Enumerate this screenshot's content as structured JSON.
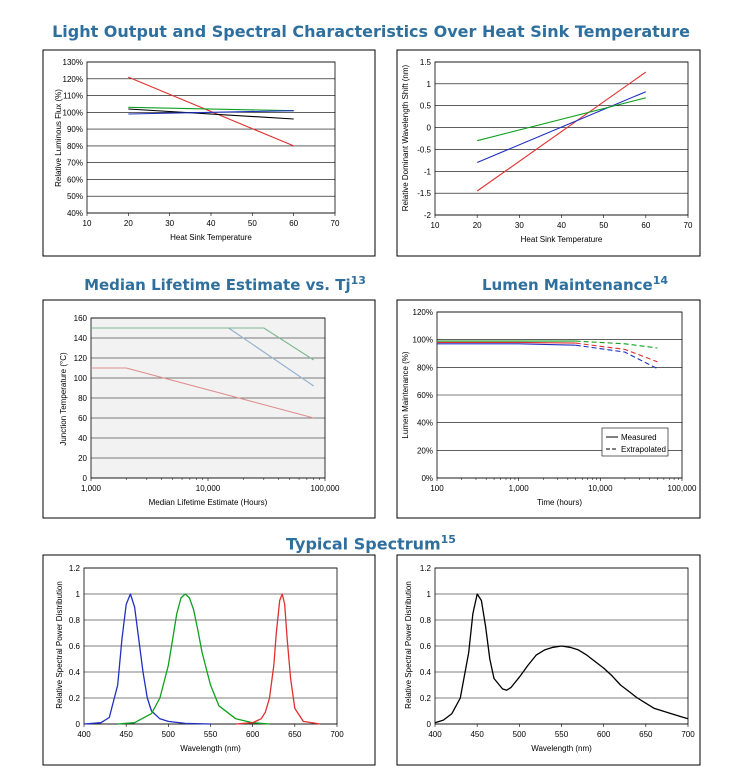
{
  "titles": {
    "main": "Light Output and Spectral Characteristics Over Heat Sink Temperature",
    "lifetime": "Median Lifetime Estimate vs. Tj",
    "lifetime_sup": "13",
    "lumen": "Lumen Maintenance",
    "lumen_sup": "14",
    "spectrum": "Typical Spectrum",
    "spectrum_sup": "15"
  },
  "colors": {
    "title": "#2e6f9e",
    "red": "#e03030",
    "green": "#10a020",
    "blue": "#2030c0",
    "black": "#000000",
    "yellow": "#f0e060"
  },
  "chart_data": [
    {
      "type": "line",
      "xlabel": "Heat Sink Temperature",
      "ylabel": "Relative Luminous Flux (%)",
      "xlim": [
        10,
        70
      ],
      "ylim": [
        40,
        130
      ],
      "xticks": [
        "10",
        "20",
        "30",
        "40",
        "50",
        "60",
        "70"
      ],
      "yticks": [
        "40%",
        "50%",
        "60%",
        "70%",
        "80%",
        "90%",
        "100%",
        "110%",
        "120%",
        "130%"
      ],
      "grid": true,
      "series": [
        {
          "color": "#e03030",
          "x": [
            20,
            60
          ],
          "y": [
            121,
            80
          ]
        },
        {
          "color": "#10a020",
          "x": [
            20,
            60
          ],
          "y": [
            103,
            101
          ]
        },
        {
          "color": "#000000",
          "x": [
            20,
            60
          ],
          "y": [
            102,
            96
          ]
        },
        {
          "color": "#2030c0",
          "x": [
            20,
            60
          ],
          "y": [
            99,
            101
          ]
        }
      ]
    },
    {
      "type": "line",
      "xlabel": "Heat Sink Temperature",
      "ylabel": "Relative Dominant  Wavelength Shift (nm)",
      "xlim": [
        10,
        70
      ],
      "ylim": [
        -2,
        1.5
      ],
      "xticks": [
        "10",
        "20",
        "30",
        "40",
        "50",
        "60",
        "70"
      ],
      "yticks": [
        "-2",
        "-1.5",
        "-1",
        "-0.5",
        "0",
        "0.5",
        "1",
        "1.5"
      ],
      "grid": true,
      "series": [
        {
          "color": "#e03030",
          "x": [
            20,
            60
          ],
          "y": [
            -1.45,
            1.27
          ]
        },
        {
          "color": "#2030c0",
          "x": [
            20,
            60
          ],
          "y": [
            -0.8,
            0.82
          ]
        },
        {
          "color": "#10a020",
          "x": [
            20,
            60
          ],
          "y": [
            -0.3,
            0.68
          ]
        }
      ]
    },
    {
      "type": "line",
      "xlabel": "Median Lifetime Estimate (Hours)",
      "ylabel": "Junction Temperature (°C)",
      "xscale": "log",
      "xlim": [
        1000,
        100000
      ],
      "ylim": [
        0,
        160
      ],
      "xticks": [
        "1,000",
        "10,000",
        "100,000"
      ],
      "yticks": [
        "0",
        "20",
        "40",
        "60",
        "80",
        "100",
        "120",
        "140",
        "160"
      ],
      "grid": true,
      "series": [
        {
          "color": "#e09090",
          "x": [
            1000,
            2000,
            80000
          ],
          "y": [
            110,
            110,
            60
          ]
        },
        {
          "color": "#f0e060",
          "x": [
            1000,
            15000,
            80000
          ],
          "y": [
            150,
            150,
            92
          ]
        },
        {
          "color": "#90b0e0",
          "x": [
            15000,
            80000
          ],
          "y": [
            150,
            92
          ]
        },
        {
          "color": "#80b890",
          "x": [
            1000,
            30000,
            80000
          ],
          "y": [
            150,
            150,
            118
          ]
        }
      ]
    },
    {
      "type": "line",
      "xlabel": "Time (hours)",
      "ylabel": "Lumen Maintenance (%)",
      "xscale": "log",
      "xlim": [
        100,
        100000
      ],
      "ylim": [
        0,
        120
      ],
      "xticks": [
        "100",
        "1,000",
        "10,000",
        "100,000"
      ],
      "yticks": [
        "0%",
        "20%",
        "40%",
        "60%",
        "80%",
        "100%",
        "120%"
      ],
      "grid": true,
      "legend": {
        "position": "bottom-right",
        "measured": "Measured",
        "extrapolated": "Extrapolated"
      },
      "series": [
        {
          "color": "#10a020",
          "style": "measured",
          "x": [
            100,
            1000,
            5000
          ],
          "y": [
            99,
            99,
            99
          ]
        },
        {
          "color": "#10a020",
          "style": "extrapolated",
          "x": [
            5000,
            20000,
            50000
          ],
          "y": [
            99,
            97,
            94
          ]
        },
        {
          "color": "#e03030",
          "style": "measured",
          "x": [
            100,
            1000,
            5000
          ],
          "y": [
            98,
            98,
            97.5
          ]
        },
        {
          "color": "#e03030",
          "style": "extrapolated",
          "x": [
            5000,
            20000,
            50000
          ],
          "y": [
            97.5,
            93,
            84
          ]
        },
        {
          "color": "#2030c0",
          "style": "measured",
          "x": [
            100,
            1000,
            5000
          ],
          "y": [
            97,
            97,
            96
          ]
        },
        {
          "color": "#2030c0",
          "style": "extrapolated",
          "x": [
            5000,
            20000,
            50000
          ],
          "y": [
            96,
            91,
            79
          ]
        }
      ]
    },
    {
      "type": "line",
      "xlabel": "Wavelength (nm)",
      "ylabel": "Relative Spectral Power Distribution",
      "xlim": [
        400,
        700
      ],
      "ylim": [
        0,
        1.2
      ],
      "xticks": [
        "400",
        "450",
        "500",
        "550",
        "600",
        "650",
        "700"
      ],
      "yticks": [
        "0",
        "0.2",
        "0.4",
        "0.6",
        "0.8",
        "1",
        "1.2"
      ],
      "grid": true,
      "series": [
        {
          "color": "#2030c0",
          "x": [
            400,
            420,
            430,
            440,
            445,
            450,
            455,
            460,
            465,
            470,
            475,
            480,
            490,
            500,
            520,
            550
          ],
          "y": [
            0,
            0.01,
            0.05,
            0.3,
            0.65,
            0.92,
            1.0,
            0.9,
            0.65,
            0.4,
            0.2,
            0.1,
            0.04,
            0.02,
            0.005,
            0
          ]
        },
        {
          "color": "#10a020",
          "x": [
            440,
            460,
            480,
            490,
            500,
            505,
            510,
            515,
            520,
            525,
            530,
            535,
            540,
            550,
            560,
            580,
            600,
            620
          ],
          "y": [
            0,
            0.01,
            0.08,
            0.2,
            0.45,
            0.65,
            0.85,
            0.97,
            1.0,
            0.97,
            0.88,
            0.72,
            0.55,
            0.3,
            0.14,
            0.04,
            0.01,
            0
          ]
        },
        {
          "color": "#e03030",
          "x": [
            580,
            600,
            610,
            615,
            620,
            625,
            628,
            632,
            635,
            638,
            641,
            645,
            650,
            660,
            680
          ],
          "y": [
            0,
            0.01,
            0.04,
            0.09,
            0.2,
            0.45,
            0.7,
            0.95,
            1.0,
            0.92,
            0.65,
            0.35,
            0.12,
            0.02,
            0
          ]
        }
      ]
    },
    {
      "type": "line",
      "xlabel": "Wavelength (nm)",
      "ylabel": "Relative Spectral Power Distribution",
      "xlim": [
        400,
        700
      ],
      "ylim": [
        0,
        1.2
      ],
      "xticks": [
        "400",
        "450",
        "500",
        "550",
        "600",
        "650",
        "700"
      ],
      "yticks": [
        "0",
        "0.2",
        "0.4",
        "0.6",
        "0.8",
        "1",
        "1.2"
      ],
      "grid": true,
      "series": [
        {
          "color": "#000000",
          "x": [
            400,
            410,
            420,
            430,
            440,
            445,
            450,
            455,
            460,
            465,
            470,
            480,
            485,
            490,
            500,
            510,
            520,
            530,
            540,
            550,
            560,
            570,
            580,
            590,
            600,
            610,
            620,
            630,
            640,
            650,
            660,
            670,
            680,
            690,
            700
          ],
          "y": [
            0.01,
            0.03,
            0.08,
            0.2,
            0.55,
            0.85,
            1.0,
            0.95,
            0.75,
            0.5,
            0.35,
            0.27,
            0.26,
            0.28,
            0.36,
            0.45,
            0.53,
            0.57,
            0.59,
            0.6,
            0.59,
            0.57,
            0.53,
            0.48,
            0.43,
            0.37,
            0.3,
            0.25,
            0.2,
            0.16,
            0.12,
            0.1,
            0.08,
            0.06,
            0.04
          ]
        }
      ]
    }
  ]
}
